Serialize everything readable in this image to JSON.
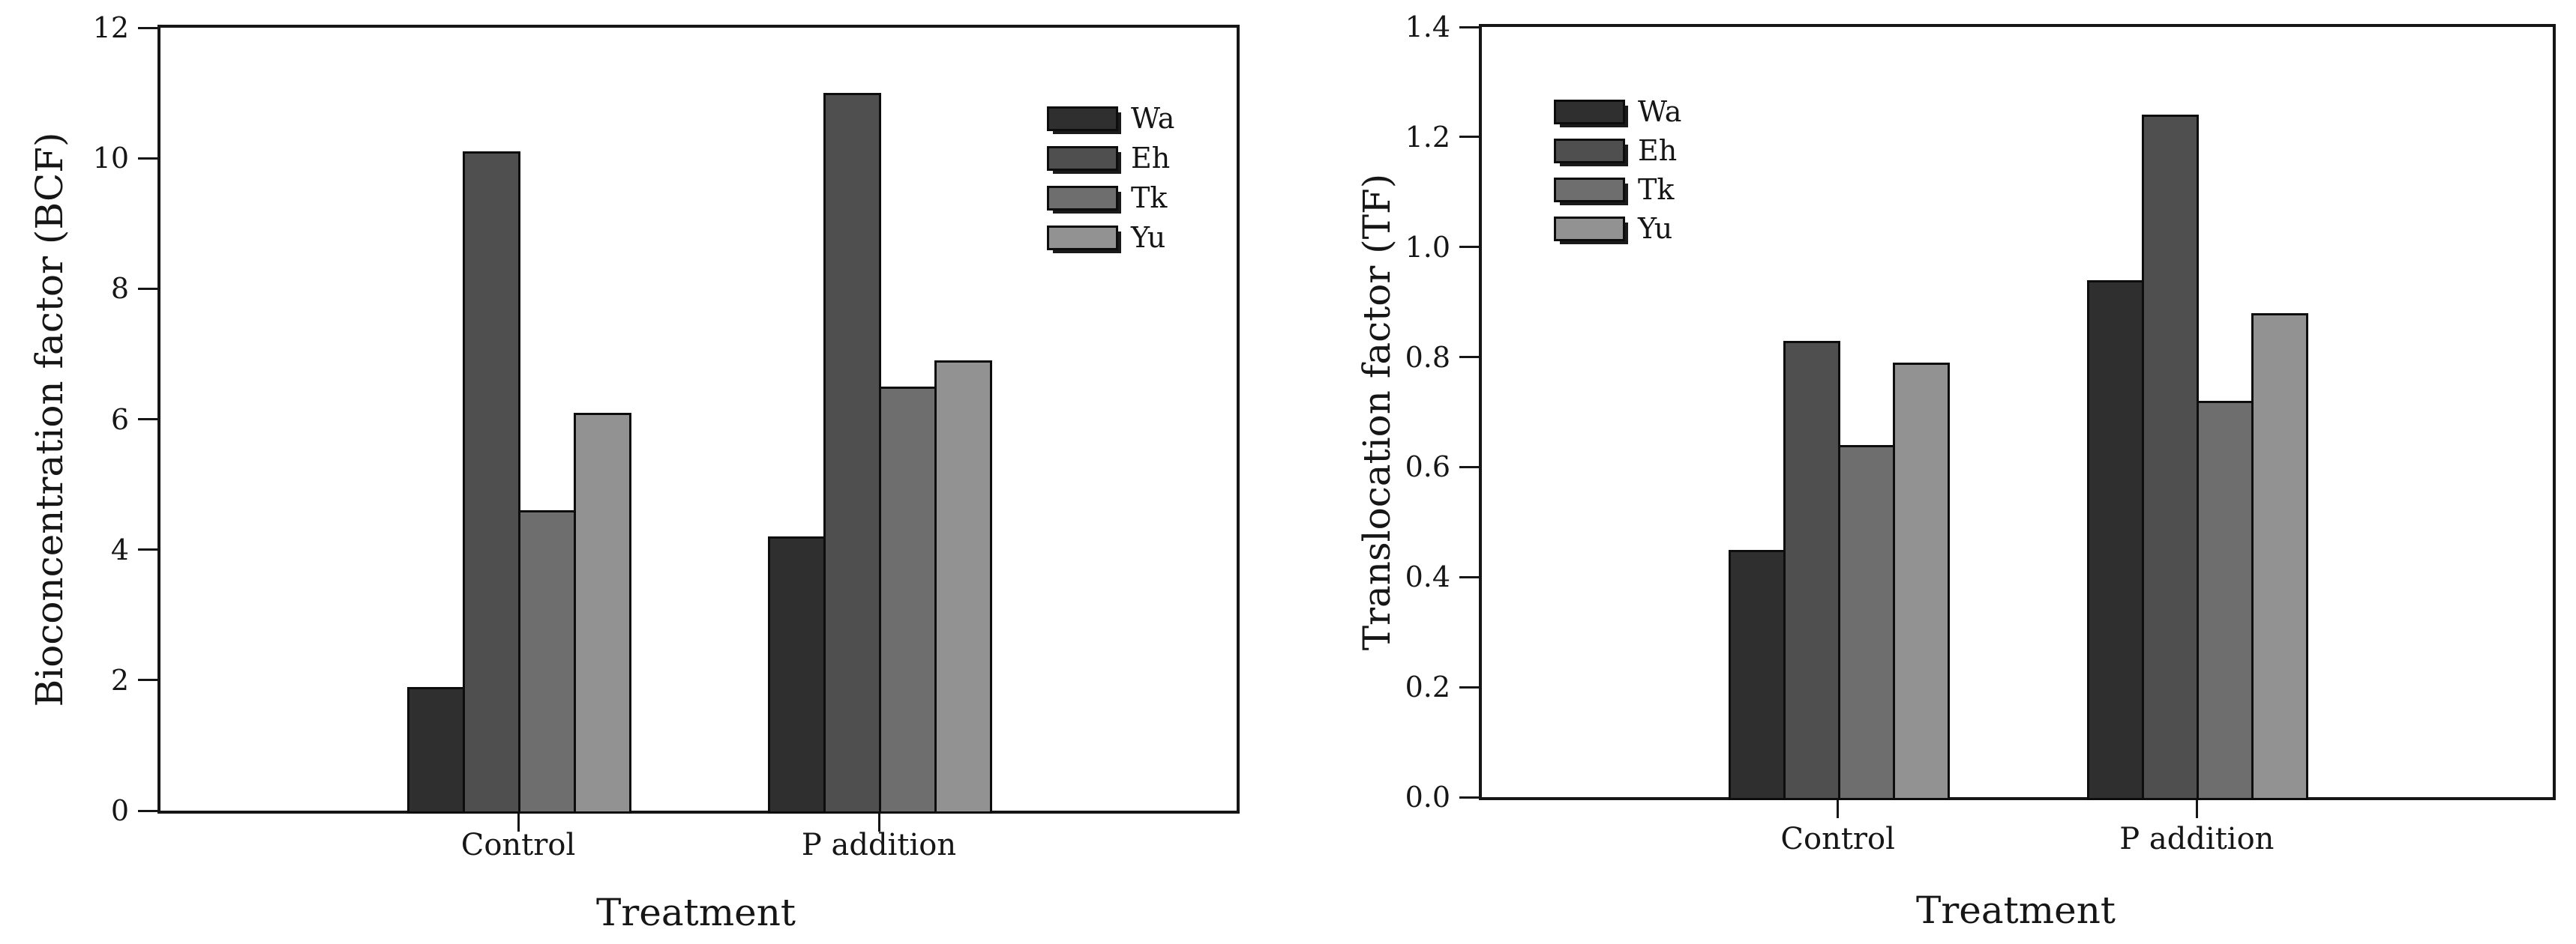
{
  "figure": {
    "background": "#ffffff",
    "axis_color": "#161616",
    "bar_outline_color": "#0d0d0d",
    "text_color": "#161616"
  },
  "chart_data": [
    {
      "type": "bar",
      "title": "",
      "ylabel": "Bioconcentration factor (BCF)",
      "xlabel": "Treatment",
      "categories": [
        "Control",
        "P addition"
      ],
      "series": [
        {
          "name": "Wa",
          "color": "#2f2f2f",
          "values": [
            1.9,
            4.2
          ]
        },
        {
          "name": "Eh",
          "color": "#4f4f4f",
          "values": [
            10.1,
            11.0
          ]
        },
        {
          "name": "Tk",
          "color": "#6e6e6e",
          "values": [
            4.6,
            6.5
          ]
        },
        {
          "name": "Yu",
          "color": "#929292",
          "values": [
            6.1,
            6.9
          ]
        }
      ],
      "ylim": [
        0,
        12
      ],
      "yticks": [
        0,
        2,
        4,
        6,
        8,
        10,
        12
      ],
      "ytick_labels": [
        "0",
        "2",
        "4",
        "6",
        "8",
        "10",
        "12"
      ],
      "legend": {
        "entries": [
          "Wa",
          "Eh",
          "Tk",
          "Yu"
        ],
        "position": "inside-top-right"
      },
      "grid": false
    },
    {
      "type": "bar",
      "title": "",
      "ylabel": "Translocation factor (TF)",
      "xlabel": "Treatment",
      "categories": [
        "Control",
        "P addition"
      ],
      "series": [
        {
          "name": "Wa",
          "color": "#2f2f2f",
          "values": [
            0.45,
            0.94
          ]
        },
        {
          "name": "Eh",
          "color": "#4f4f4f",
          "values": [
            0.83,
            1.24
          ]
        },
        {
          "name": "Tk",
          "color": "#6e6e6e",
          "values": [
            0.64,
            0.72
          ]
        },
        {
          "name": "Yu",
          "color": "#929292",
          "values": [
            0.79,
            0.88
          ]
        }
      ],
      "ylim": [
        0,
        1.4
      ],
      "yticks": [
        0,
        0.2,
        0.4,
        0.6,
        0.8,
        1.0,
        1.2,
        1.4
      ],
      "ytick_labels": [
        "0.0",
        "0.2",
        "0.4",
        "0.6",
        "0.8",
        "1.0",
        "1.2",
        "1.4"
      ],
      "legend": {
        "entries": [
          "Wa",
          "Eh",
          "Tk",
          "Yu"
        ],
        "position": "inside-top-left"
      },
      "grid": false
    }
  ]
}
